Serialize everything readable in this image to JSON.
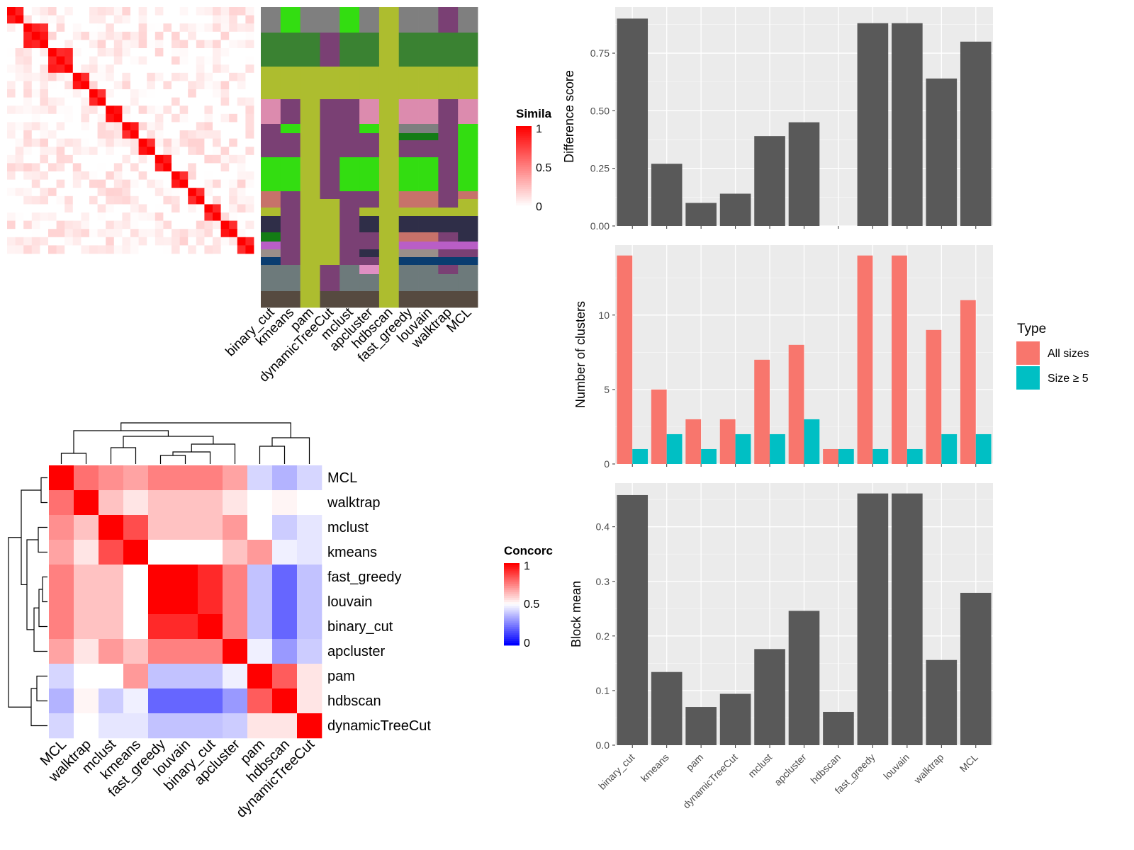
{
  "chart_data": [
    {
      "type": "heatmap",
      "name": "similarity_heatmap",
      "legend": {
        "title": "Simila",
        "ticks": [
          "1",
          "0.5",
          "0"
        ],
        "colors": [
          "#FFFFFF",
          "#FF0000"
        ]
      }
    },
    {
      "type": "heatmap",
      "name": "cluster_assignment_heatmap",
      "columns": [
        "binary_cut",
        "kmeans",
        "pam",
        "dynamicTreeCut",
        "mclust",
        "apcluster",
        "hdbscan",
        "fast_greedy",
        "louvain",
        "walktrap",
        "MCL"
      ]
    },
    {
      "type": "heatmap",
      "name": "concordance_heatmap",
      "row_labels": [
        "MCL",
        "walktrap",
        "mclust",
        "kmeans",
        "fast_greedy",
        "louvain",
        "binary_cut",
        "apcluster",
        "pam",
        "hdbscan",
        "dynamicTreeCut"
      ],
      "col_labels": [
        "MCL",
        "walktrap",
        "mclust",
        "kmeans",
        "fast_greedy",
        "louvain",
        "binary_cut",
        "apcluster",
        "pam",
        "hdbscan",
        "dynamicTreeCut"
      ],
      "values": [
        [
          1.0,
          0.78,
          0.72,
          0.68,
          0.75,
          0.75,
          0.75,
          0.68,
          0.42,
          0.35,
          0.42
        ],
        [
          0.78,
          1.0,
          0.62,
          0.55,
          0.62,
          0.62,
          0.62,
          0.55,
          0.5,
          0.52,
          0.5
        ],
        [
          0.72,
          0.62,
          1.0,
          0.85,
          0.62,
          0.62,
          0.62,
          0.7,
          0.5,
          0.4,
          0.45
        ],
        [
          0.68,
          0.55,
          0.85,
          1.0,
          0.5,
          0.5,
          0.5,
          0.62,
          0.7,
          0.47,
          0.45
        ],
        [
          0.75,
          0.62,
          0.62,
          0.5,
          1.0,
          1.0,
          0.92,
          0.75,
          0.38,
          0.2,
          0.38
        ],
        [
          0.75,
          0.62,
          0.62,
          0.5,
          1.0,
          1.0,
          0.92,
          0.75,
          0.38,
          0.2,
          0.38
        ],
        [
          0.75,
          0.62,
          0.62,
          0.5,
          0.92,
          0.92,
          1.0,
          0.75,
          0.38,
          0.2,
          0.38
        ],
        [
          0.68,
          0.55,
          0.7,
          0.62,
          0.75,
          0.75,
          0.75,
          1.0,
          0.47,
          0.3,
          0.4
        ],
        [
          0.42,
          0.5,
          0.5,
          0.7,
          0.38,
          0.38,
          0.38,
          0.47,
          1.0,
          0.82,
          0.55
        ],
        [
          0.35,
          0.52,
          0.4,
          0.47,
          0.2,
          0.2,
          0.2,
          0.3,
          0.82,
          1.0,
          0.55
        ],
        [
          0.42,
          0.5,
          0.45,
          0.45,
          0.38,
          0.38,
          0.38,
          0.4,
          0.55,
          0.55,
          1.0
        ]
      ],
      "legend": {
        "title": "Concorc",
        "ticks": [
          "1",
          "0.5",
          "0"
        ],
        "colors": [
          "#0000FF",
          "#FFFFFF",
          "#FF0000"
        ]
      }
    },
    {
      "type": "bar",
      "name": "difference_score",
      "categories": [
        "binary_cut",
        "kmeans",
        "pam",
        "dynamicTreeCut",
        "mclust",
        "apcluster",
        "hdbscan",
        "fast_greedy",
        "louvain",
        "walktrap",
        "MCL"
      ],
      "values": [
        0.9,
        0.27,
        0.1,
        0.14,
        0.39,
        0.45,
        0.0,
        0.88,
        0.88,
        0.64,
        0.8
      ],
      "ylabel": "Difference score",
      "ylim": [
        0,
        0.95
      ],
      "yticks": [
        "0.00",
        "0.25",
        "0.50",
        "0.75"
      ],
      "bar_color": "#595959"
    },
    {
      "type": "bar",
      "name": "number_of_clusters",
      "categories": [
        "binary_cut",
        "kmeans",
        "pam",
        "dynamicTreeCut",
        "mclust",
        "apcluster",
        "hdbscan",
        "fast_greedy",
        "louvain",
        "walktrap",
        "MCL"
      ],
      "series": [
        {
          "name": "All sizes",
          "values": [
            14,
            5,
            3,
            3,
            7,
            8,
            1,
            14,
            14,
            9,
            11
          ],
          "color": "#F8766D"
        },
        {
          "name": "Size ≥ 5",
          "values": [
            1,
            2,
            1,
            2,
            2,
            3,
            1,
            1,
            1,
            2,
            2
          ],
          "color": "#00BFC4"
        }
      ],
      "ylabel": "Number of clusters",
      "ylim": [
        0,
        14.7
      ],
      "yticks": [
        "0",
        "5",
        "10"
      ],
      "legend": {
        "title": "Type",
        "position": "right"
      }
    },
    {
      "type": "bar",
      "name": "block_mean",
      "categories": [
        "binary_cut",
        "kmeans",
        "pam",
        "dynamicTreeCut",
        "mclust",
        "apcluster",
        "hdbscan",
        "fast_greedy",
        "louvain",
        "walktrap",
        "MCL"
      ],
      "values": [
        0.458,
        0.134,
        0.07,
        0.094,
        0.176,
        0.246,
        0.061,
        0.461,
        0.461,
        0.156,
        0.279
      ],
      "ylabel": "Block mean",
      "ylim": [
        0,
        0.48
      ],
      "yticks": [
        "0.0",
        "0.1",
        "0.2",
        "0.3",
        "0.4"
      ],
      "bar_color": "#595959"
    }
  ]
}
